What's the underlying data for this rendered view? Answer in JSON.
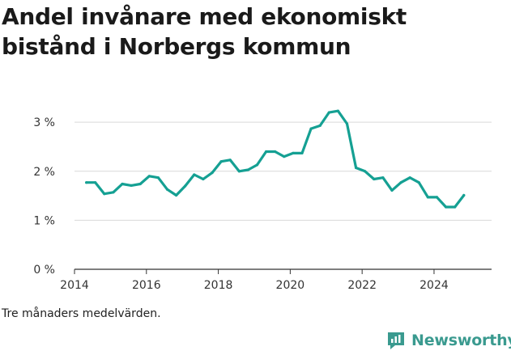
{
  "chart_data": {
    "type": "line",
    "title": "Andel invånare med ekonomiskt bistånd i Norbergs kommun",
    "note": "Tre månaders medelvärden.",
    "xlabel": "",
    "ylabel": "",
    "xlim": [
      2014,
      2025.6
    ],
    "ylim": [
      0,
      3.3
    ],
    "x_ticks": [
      2014,
      2016,
      2018,
      2020,
      2022,
      2024
    ],
    "y_ticks": [
      {
        "value": 0,
        "label": "0 %"
      },
      {
        "value": 1,
        "label": "1 %"
      },
      {
        "value": 2,
        "label": "2 %"
      },
      {
        "value": 3,
        "label": "3 %"
      }
    ],
    "grid": "horizontal",
    "color": "#15a093",
    "series": [
      {
        "x": [
          2014.33,
          2014.58,
          2014.83,
          2015.08,
          2015.33,
          2015.58,
          2015.83,
          2016.08,
          2016.33,
          2016.58,
          2016.83,
          2017.08,
          2017.33,
          2017.58,
          2017.83,
          2018.08,
          2018.33,
          2018.58,
          2018.83,
          2019.08,
          2019.33,
          2019.58,
          2019.83,
          2020.08,
          2020.33,
          2020.58,
          2020.83,
          2021.08,
          2021.33,
          2021.58,
          2021.83,
          2022.08,
          2022.33,
          2022.58,
          2022.83,
          2023.08,
          2023.33,
          2023.58,
          2023.83,
          2024.08,
          2024.33,
          2024.58,
          2024.83
        ],
        "y": [
          1.77,
          1.77,
          1.54,
          1.57,
          1.74,
          1.71,
          1.74,
          1.9,
          1.87,
          1.63,
          1.51,
          1.7,
          1.93,
          1.84,
          1.97,
          2.2,
          2.23,
          2.0,
          2.03,
          2.13,
          2.4,
          2.4,
          2.3,
          2.37,
          2.37,
          2.87,
          2.93,
          3.2,
          3.23,
          2.97,
          2.07,
          2.0,
          1.84,
          1.87,
          1.61,
          1.77,
          1.87,
          1.77,
          1.47,
          1.47,
          1.27,
          1.27,
          1.51
        ]
      }
    ]
  },
  "brand": {
    "name": "Newsworthy",
    "icon": "newsworthy-logo-icon"
  }
}
